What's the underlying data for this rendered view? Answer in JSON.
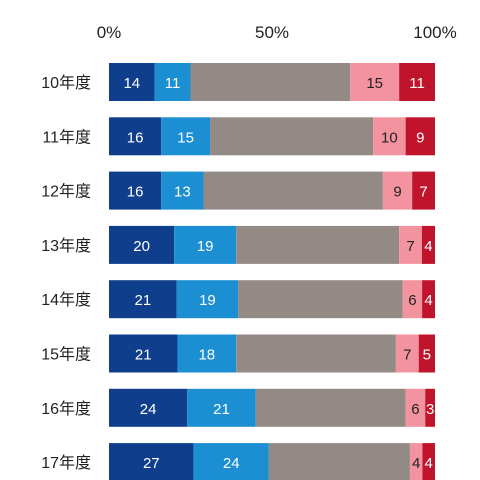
{
  "chart_data": {
    "type": "bar",
    "orientation": "horizontal",
    "stacked": "100%",
    "x_ticks": [
      "0%",
      "50%",
      "100%"
    ],
    "xlim": [
      0,
      100
    ],
    "categories": [
      "10年度",
      "11年度",
      "12年度",
      "13年度",
      "14年度",
      "15年度",
      "16年度",
      "17年度"
    ],
    "series": [
      {
        "color": "#0f3f8c",
        "label_color": "#ffffff",
        "values": [
          14,
          16,
          16,
          20,
          21,
          21,
          24,
          27
        ]
      },
      {
        "color": "#1b8fd2",
        "label_color": "#ffffff",
        "values": [
          11,
          15,
          13,
          19,
          19,
          18,
          21,
          24
        ]
      },
      {
        "color": "#938a86",
        "label_color": null,
        "values": [
          49,
          50,
          55,
          50,
          51,
          49,
          46,
          45
        ]
      },
      {
        "color": "#f3939f",
        "label_color": "#222222",
        "values": [
          15,
          10,
          9,
          7,
          6,
          7,
          6,
          4
        ]
      },
      {
        "color": "#c0142d",
        "label_color": "#ffffff",
        "values": [
          11,
          9,
          7,
          4,
          4,
          5,
          3,
          4
        ]
      }
    ],
    "grid": false,
    "legend": "none"
  }
}
